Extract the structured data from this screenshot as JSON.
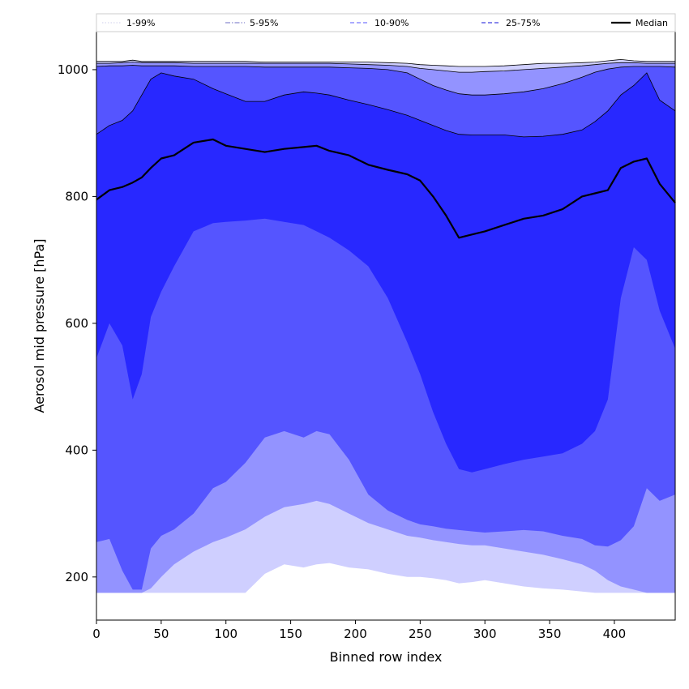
{
  "chart_data": {
    "type": "area",
    "xlabel": "Binned row index",
    "ylabel": "Aerosol mid pressure [hPa]",
    "xlim": [
      0,
      447
    ],
    "ylim": [
      132,
      1060
    ],
    "x_ticks": [
      0,
      50,
      100,
      150,
      200,
      250,
      300,
      350,
      400
    ],
    "x_tick_labels": [
      "0",
      "50",
      "100",
      "150",
      "200",
      "250",
      "300",
      "350",
      "400"
    ],
    "y_ticks": [
      200,
      400,
      600,
      800,
      1000
    ],
    "y_tick_labels": [
      "200",
      "400",
      "600",
      "800",
      "1000"
    ],
    "grid": false,
    "legend_position": "top",
    "x": [
      0,
      10,
      20,
      28,
      35,
      42,
      50,
      60,
      75,
      90,
      100,
      115,
      130,
      145,
      160,
      170,
      180,
      195,
      210,
      225,
      240,
      250,
      260,
      270,
      280,
      290,
      300,
      315,
      330,
      345,
      360,
      375,
      385,
      395,
      405,
      415,
      425,
      435,
      447
    ],
    "bands": [
      {
        "name": "1-99%",
        "color": "#cfcfff",
        "line_color": "#d8d8f0",
        "line_style": "dotted",
        "lower": [
          175,
          175,
          175,
          175,
          175,
          175,
          175,
          175,
          175,
          175,
          175,
          175,
          205,
          220,
          215,
          220,
          222,
          215,
          212,
          205,
          200,
          200,
          198,
          195,
          190,
          192,
          195,
          190,
          185,
          182,
          180,
          177,
          175,
          175,
          175,
          175,
          175,
          175,
          175
        ],
        "upper": [
          1013,
          1013,
          1013,
          1015,
          1013,
          1013,
          1013,
          1013,
          1013,
          1013,
          1013,
          1013,
          1012,
          1012,
          1012,
          1012,
          1012,
          1012,
          1012,
          1011,
          1010,
          1008,
          1007,
          1006,
          1005,
          1005,
          1005,
          1006,
          1008,
          1010,
          1010,
          1011,
          1012,
          1014,
          1016,
          1014,
          1013,
          1013,
          1013
        ]
      },
      {
        "name": "5-95%",
        "color": "#9393ff",
        "line_color": "#8a8ad0",
        "line_style": "dashdot",
        "lower": [
          175,
          175,
          175,
          175,
          175,
          182,
          200,
          220,
          240,
          255,
          262,
          275,
          295,
          310,
          315,
          320,
          315,
          300,
          285,
          275,
          265,
          262,
          258,
          255,
          252,
          250,
          250,
          245,
          240,
          235,
          228,
          220,
          210,
          195,
          185,
          180,
          175,
          175,
          175
        ],
        "upper": [
          1010,
          1010,
          1011,
          1012,
          1011,
          1011,
          1011,
          1011,
          1010,
          1010,
          1010,
          1010,
          1010,
          1010,
          1010,
          1010,
          1010,
          1009,
          1008,
          1007,
          1005,
          1002,
          1000,
          998,
          996,
          996,
          997,
          998,
          1000,
          1002,
          1004,
          1006,
          1008,
          1010,
          1011,
          1011,
          1010,
          1010,
          1010
        ]
      },
      {
        "name": "10-90%",
        "color": "#5555ff",
        "line_color": "#7777ff",
        "line_style": "dashed",
        "lower": [
          255,
          260,
          210,
          180,
          180,
          245,
          265,
          275,
          300,
          340,
          350,
          380,
          420,
          430,
          420,
          430,
          425,
          385,
          330,
          305,
          290,
          283,
          280,
          276,
          274,
          272,
          270,
          272,
          274,
          272,
          265,
          260,
          250,
          248,
          258,
          280,
          340,
          320,
          330
        ],
        "upper": [
          1005,
          1006,
          1006,
          1007,
          1006,
          1006,
          1006,
          1006,
          1005,
          1005,
          1005,
          1005,
          1004,
          1004,
          1004,
          1004,
          1004,
          1003,
          1002,
          1000,
          995,
          985,
          975,
          968,
          962,
          960,
          960,
          962,
          965,
          970,
          978,
          988,
          996,
          1001,
          1004,
          1005,
          1005,
          1005,
          1004
        ]
      },
      {
        "name": "25-75%",
        "color": "#2828ff",
        "line_color": "#4040e0",
        "line_style": "dashed",
        "lower": [
          545,
          600,
          565,
          480,
          520,
          610,
          650,
          690,
          745,
          758,
          760,
          762,
          765,
          760,
          755,
          745,
          735,
          715,
          690,
          640,
          570,
          520,
          460,
          410,
          370,
          365,
          370,
          378,
          385,
          390,
          395,
          410,
          430,
          480,
          640,
          720,
          700,
          620,
          560
        ],
        "upper": [
          898,
          912,
          920,
          935,
          960,
          985,
          995,
          990,
          985,
          970,
          962,
          950,
          950,
          960,
          965,
          963,
          960,
          952,
          945,
          937,
          928,
          920,
          912,
          904,
          898,
          897,
          897,
          897,
          894,
          895,
          898,
          905,
          918,
          935,
          960,
          975,
          995,
          952,
          935
        ]
      }
    ],
    "series": [
      {
        "name": "Median",
        "color": "#000000",
        "values": [
          795,
          810,
          815,
          822,
          830,
          845,
          860,
          865,
          885,
          890,
          880,
          875,
          870,
          875,
          878,
          880,
          872,
          865,
          850,
          842,
          835,
          825,
          800,
          770,
          735,
          740,
          745,
          755,
          765,
          770,
          780,
          800,
          805,
          810,
          845,
          855,
          860,
          820,
          790
        ]
      }
    ]
  }
}
